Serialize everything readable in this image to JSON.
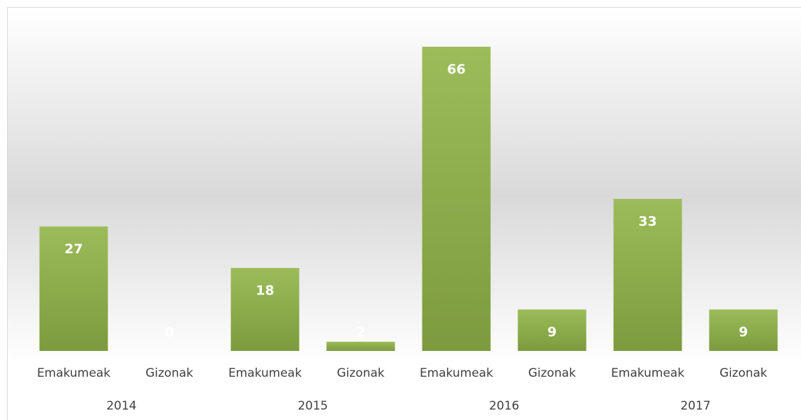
{
  "chart_data": {
    "type": "bar",
    "categories": [
      "Emakumeak",
      "Gizonak",
      "Emakumeak",
      "Gizonak",
      "Emakumeak",
      "Gizonak",
      "Emakumeak",
      "Gizonak"
    ],
    "groups": [
      "2014",
      "2015",
      "2016",
      "2017"
    ],
    "values": [
      27,
      0,
      18,
      2,
      66,
      9,
      33,
      9
    ],
    "color": "#9bbb59"
  }
}
